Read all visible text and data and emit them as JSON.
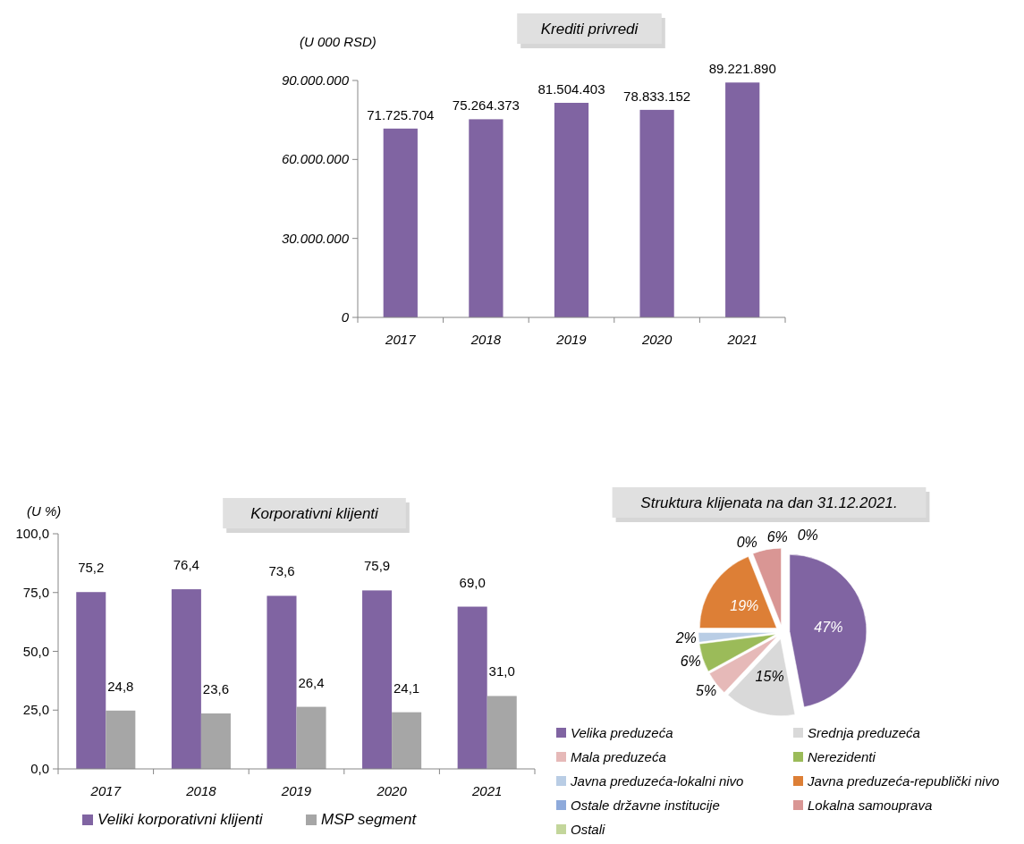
{
  "chart_data": [
    {
      "type": "bar",
      "title": "Krediti privredi",
      "ylabel": "(U 000 RSD)",
      "categories": [
        "2017",
        "2018",
        "2019",
        "2020",
        "2021"
      ],
      "series": [
        {
          "color": "#8064a2",
          "values": [
            71725704,
            75264373,
            81504403,
            78833152,
            89221890
          ],
          "value_labels": [
            "71.725.704",
            "75.264.373",
            "81.504.403",
            "78.833.152",
            "89.221.890"
          ]
        }
      ],
      "ylim": [
        0,
        90000000
      ],
      "yticks": [
        {
          "value": 0,
          "label": "0"
        },
        {
          "value": 30000000,
          "label": "30.000.000"
        },
        {
          "value": 60000000,
          "label": "60.000.000"
        },
        {
          "value": 90000000,
          "label": "90.000.000"
        }
      ],
      "grid": false,
      "legend": false
    },
    {
      "type": "bar",
      "title": "Korporativni klijenti",
      "ylabel": "(U %)",
      "categories": [
        "2017",
        "2018",
        "2019",
        "2020",
        "2021"
      ],
      "series": [
        {
          "name": "Veliki korporativni klijenti",
          "color": "#8064a2",
          "values": [
            75.2,
            76.4,
            73.6,
            75.9,
            69.0
          ],
          "value_labels": [
            "75,2",
            "76,4",
            "73,6",
            "75,9",
            "69,0"
          ]
        },
        {
          "name": "MSP segment",
          "color": "#a6a6a6",
          "values": [
            24.8,
            23.6,
            26.4,
            24.1,
            31.0
          ],
          "value_labels": [
            "24,8",
            "23,6",
            "26,4",
            "24,1",
            "31,0"
          ]
        }
      ],
      "ylim": [
        0,
        100
      ],
      "yticks": [
        {
          "value": 0,
          "label": "0,0"
        },
        {
          "value": 25,
          "label": "25,0"
        },
        {
          "value": 50,
          "label": "50,0"
        },
        {
          "value": 75,
          "label": "75,0"
        },
        {
          "value": 100,
          "label": "100,0"
        }
      ],
      "grid": false,
      "legend": "bottom"
    },
    {
      "type": "pie",
      "title": "Struktura klijenata na dan 31.12.2021.",
      "categories": [
        "Velika preduzeća",
        "Srednja preduzeća",
        "Mala preduzeća",
        "Nerezidenti",
        "Javna preduzeća-lokalni nivo",
        "Javna preduzeća-republički nivo",
        "Ostale državne institucije",
        "Lokalna samouprava",
        "Ostali"
      ],
      "values": [
        47,
        15,
        5,
        6,
        2,
        19,
        0,
        6,
        0
      ],
      "value_labels": [
        "47%",
        "15%",
        "5%",
        "6%",
        "2%",
        "19%",
        "0%",
        "6%",
        "0%"
      ],
      "colors": [
        "#8064a2",
        "#d9d9d9",
        "#e6b9b8",
        "#9bbb59",
        "#b9cde5",
        "#dd7f36",
        "#8eaadb",
        "#d99694",
        "#c3d69b"
      ],
      "legend": "bottom"
    }
  ]
}
